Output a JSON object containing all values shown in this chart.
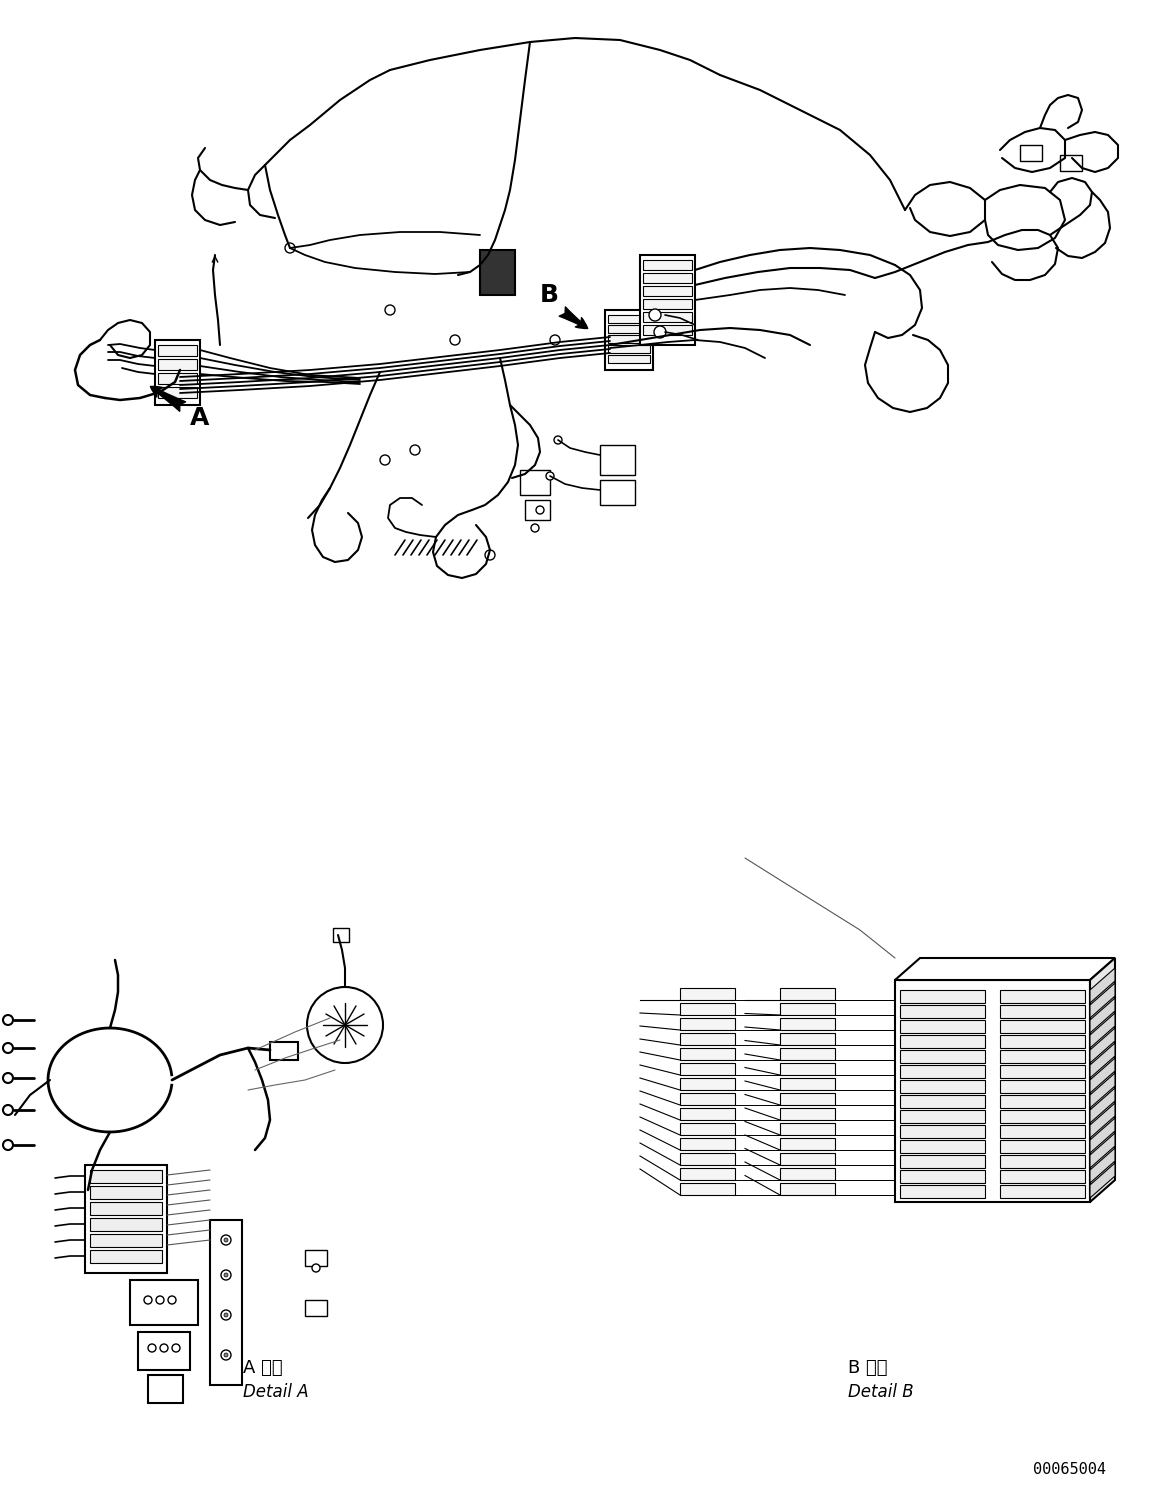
{
  "bg_color": "#ffffff",
  "line_color": "#000000",
  "fig_width": 11.63,
  "fig_height": 14.88,
  "dpi": 100,
  "part_number": "00065004",
  "label_A": "A",
  "label_B": "B",
  "label_detail_A_jp": "A 詳細",
  "label_detail_A_en": "Detail A",
  "label_detail_B_jp": "B 詳細",
  "label_detail_B_en": "Detail B"
}
